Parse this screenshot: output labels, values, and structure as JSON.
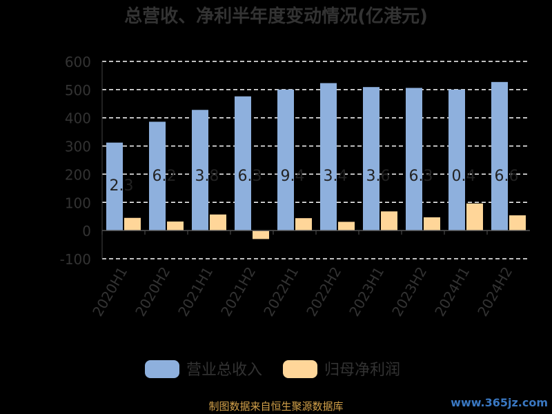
{
  "chart_data": {
    "type": "bar",
    "title": "总营收、净利半年度变动情况(亿港元)",
    "categories": [
      "2020H1",
      "2020H2",
      "2021H1",
      "2021H2",
      "2022H1",
      "2022H2",
      "2023H1",
      "2023H2",
      "2024H1",
      "2024H2"
    ],
    "series": [
      {
        "name": "营业总收入",
        "color": "#8eb0dd",
        "values": [
          312,
          386,
          428,
          476,
          500,
          523,
          509,
          506,
          500,
          527
        ]
      },
      {
        "name": "归母净利润",
        "color": "#ffd699",
        "values": [
          45,
          32,
          57,
          -30,
          44,
          31,
          68,
          47,
          96,
          54
        ]
      }
    ],
    "bar_labels": [
      "2.3",
      "6.2",
      "3.8",
      "6.3",
      "9.4",
      "3.4",
      "3.6",
      "6.3",
      "0.4",
      "6.6"
    ],
    "ylim": [
      -100,
      600
    ],
    "yticks": [
      -100,
      0,
      100,
      200,
      300,
      400,
      500,
      600
    ],
    "grid": true,
    "legend_position": "bottom"
  },
  "footer": {
    "source": "制图数据来自恒生聚源数据库",
    "watermark": "www.365jz.com"
  }
}
